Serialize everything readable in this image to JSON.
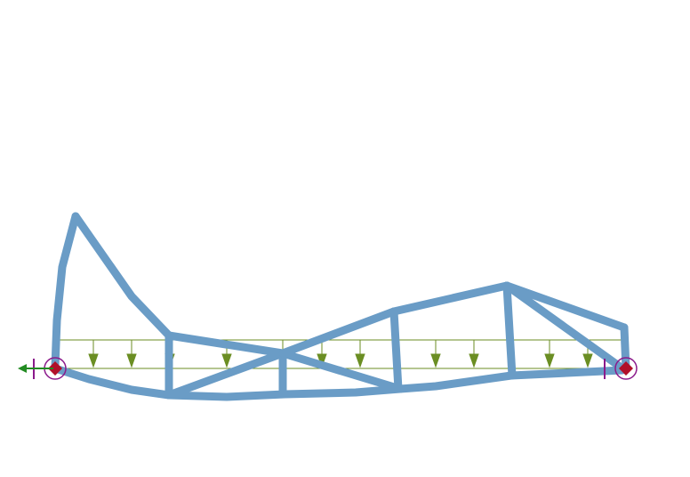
{
  "diagram": {
    "type": "structural-truss-deformed-shape",
    "colors": {
      "background": "#ffffff",
      "truss_member": "#6a9cc6",
      "truss_member_outline": "#c0403a",
      "undeformed_line": "#c0404a",
      "load_line": "#6b8e23",
      "load_arrow": "#6b8e23",
      "support_symbol": "#8b1a8b",
      "support_fill": "#b0102a",
      "reaction_arrow": "#228b22"
    },
    "icons": {
      "left_support": "pin-support-icon",
      "right_support": "roller-support-icon",
      "load_arrow": "arrow-down-icon",
      "reaction_arrow": "arrow-left-icon"
    }
  }
}
